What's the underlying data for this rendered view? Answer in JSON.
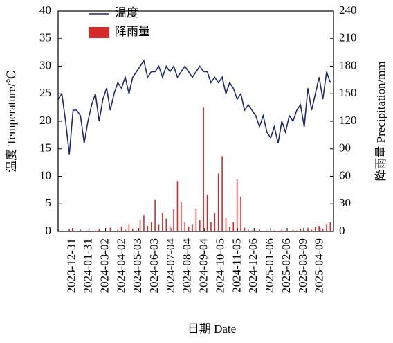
{
  "chart_data": {
    "type": "line-bar",
    "xlabel": "日期 Date",
    "ylabel": "温度 Temperature/℃",
    "y2label": "降雨量 Precipitation/mm",
    "xlim": [
      "2023-12-04",
      "2025-05-04"
    ],
    "xticks": [
      "2023-12-31",
      "2024-01-31",
      "2024-03-02",
      "2024-04-02",
      "2024-05-03",
      "2024-06-03",
      "2024-07-04",
      "2024-08-04",
      "2024-09-04",
      "2024-10-05",
      "2024-11-05",
      "2024-12-06",
      "2025-01-06",
      "2025-02-06",
      "2025-03-09",
      "2025-04-09"
    ],
    "ylim": [
      0,
      40
    ],
    "yticks": [
      0,
      5,
      10,
      15,
      20,
      25,
      30,
      35,
      40
    ],
    "y2lim": [
      0,
      240
    ],
    "y2ticks": [
      0,
      30,
      60,
      90,
      120,
      150,
      180,
      210,
      240
    ],
    "legend": "upper-left",
    "x": [
      "2023-12-04",
      "2023-12-11",
      "2023-12-18",
      "2023-12-25",
      "2024-01-01",
      "2024-01-08",
      "2024-01-15",
      "2024-01-22",
      "2024-01-29",
      "2024-02-05",
      "2024-02-12",
      "2024-02-19",
      "2024-02-26",
      "2024-03-04",
      "2024-03-11",
      "2024-03-18",
      "2024-03-25",
      "2024-04-01",
      "2024-04-08",
      "2024-04-15",
      "2024-04-22",
      "2024-04-29",
      "2024-05-06",
      "2024-05-13",
      "2024-05-20",
      "2024-05-27",
      "2024-06-03",
      "2024-06-10",
      "2024-06-17",
      "2024-06-24",
      "2024-07-01",
      "2024-07-08",
      "2024-07-15",
      "2024-07-22",
      "2024-07-29",
      "2024-08-05",
      "2024-08-12",
      "2024-08-19",
      "2024-08-26",
      "2024-09-02",
      "2024-09-09",
      "2024-09-16",
      "2024-09-23",
      "2024-09-30",
      "2024-10-07",
      "2024-10-14",
      "2024-10-21",
      "2024-10-28",
      "2024-11-04",
      "2024-11-11",
      "2024-11-18",
      "2024-11-25",
      "2024-12-02",
      "2024-12-09",
      "2024-12-16",
      "2024-12-23",
      "2024-12-30",
      "2025-01-06",
      "2025-01-13",
      "2025-01-20",
      "2025-01-27",
      "2025-02-03",
      "2025-02-10",
      "2025-02-17",
      "2025-02-24",
      "2025-03-03",
      "2025-03-10",
      "2025-03-17",
      "2025-03-24",
      "2025-03-31",
      "2025-04-07",
      "2025-04-14",
      "2025-04-21",
      "2025-04-28"
    ],
    "series": [
      {
        "name": "温度",
        "color": "#1f2a6b",
        "values": [
          24,
          25,
          20,
          14,
          22,
          22,
          21,
          16,
          20,
          23,
          25,
          20,
          24,
          26,
          22,
          25,
          27,
          26,
          28,
          25,
          28,
          29,
          30,
          31,
          28,
          29,
          29,
          30,
          28,
          30,
          29,
          30,
          28,
          29,
          30,
          29,
          28,
          29,
          30,
          29,
          29,
          27,
          28,
          27,
          28,
          25,
          27,
          26,
          24,
          25,
          22,
          23,
          22,
          21,
          19,
          21,
          18,
          17,
          19,
          16,
          20,
          18,
          21,
          20,
          22,
          23,
          19,
          26,
          22,
          25,
          28,
          24,
          29,
          27
        ]
      },
      {
        "name": "降雨量",
        "color": "#d42a2a",
        "axis": "y2",
        "values": [
          2,
          1,
          0,
          3,
          1,
          0,
          2,
          0,
          1,
          0,
          1,
          3,
          0,
          1,
          4,
          0,
          2,
          5,
          2,
          8,
          3,
          1,
          12,
          18,
          6,
          10,
          35,
          8,
          20,
          14,
          6,
          24,
          55,
          32,
          10,
          5,
          8,
          25,
          12,
          135,
          40,
          10,
          20,
          63,
          82,
          15,
          5,
          10,
          57,
          38,
          4,
          2,
          1,
          0,
          2,
          0,
          1,
          0,
          1,
          0,
          2,
          1,
          0,
          2,
          1,
          3,
          1,
          4,
          2,
          5,
          6,
          3,
          8,
          10
        ]
      }
    ]
  }
}
